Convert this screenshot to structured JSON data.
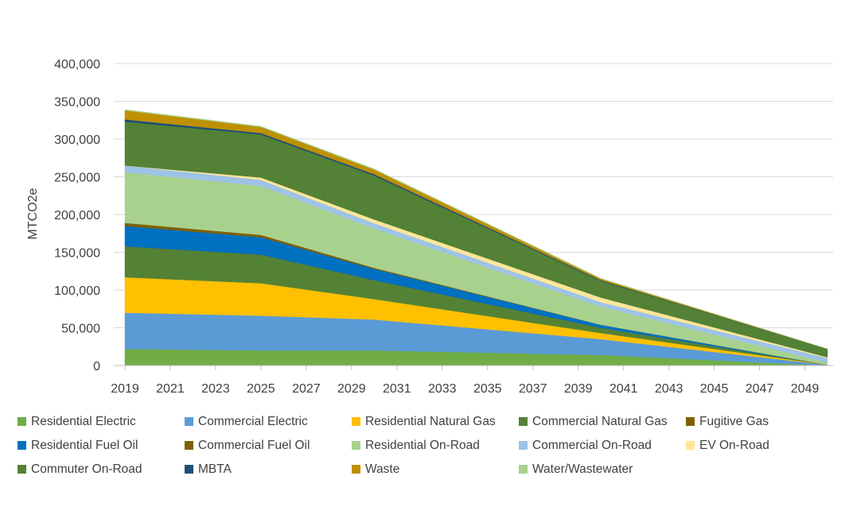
{
  "chart_data": {
    "type": "area",
    "stacked": true,
    "title": "",
    "xlabel": "",
    "ylabel": "MTCO2e",
    "ylim": [
      0,
      400000
    ],
    "yticks": [
      0,
      50000,
      100000,
      150000,
      200000,
      250000,
      300000,
      350000,
      400000
    ],
    "ytick_labels": [
      "0",
      "50,000",
      "100,000",
      "150,000",
      "200,000",
      "250,000",
      "300,000",
      "350,000",
      "400,000"
    ],
    "xlim": [
      2019,
      2050
    ],
    "xticks": [
      2019,
      2021,
      2023,
      2025,
      2027,
      2029,
      2031,
      2033,
      2035,
      2037,
      2039,
      2041,
      2043,
      2045,
      2047,
      2049
    ],
    "xtick_labels": [
      "2019",
      "2021",
      "2023",
      "2025",
      "2027",
      "2029",
      "2031",
      "2033",
      "2035",
      "2037",
      "2039",
      "2041",
      "2043",
      "2045",
      "2047",
      "2049"
    ],
    "grid": true,
    "legend_position": "bottom",
    "x": [
      2019,
      2025,
      2030,
      2040,
      2050
    ],
    "series": [
      {
        "name": "Residential Electric",
        "color": "#70ad47",
        "values": [
          22000,
          20000,
          20000,
          14000,
          0
        ]
      },
      {
        "name": "Commercial Electric",
        "color": "#5b9bd5",
        "values": [
          48000,
          46000,
          41000,
          21000,
          1000
        ]
      },
      {
        "name": "Residential Natural Gas",
        "color": "#ffc000",
        "values": [
          47000,
          43000,
          27000,
          8000,
          0
        ]
      },
      {
        "name": "Commercial Natural Gas",
        "color": "#548235",
        "values": [
          41000,
          38000,
          25000,
          7000,
          0
        ]
      },
      {
        "name": "Fugitive Gas",
        "color": "#806000",
        "values": [
          0,
          0,
          0,
          0,
          0
        ]
      },
      {
        "name": "Residential Fuel Oil",
        "color": "#0070c0",
        "values": [
          27000,
          23000,
          15000,
          4000,
          0
        ]
      },
      {
        "name": "Commercial Fuel Oil",
        "color": "#7f6000",
        "values": [
          4000,
          3000,
          1500,
          0,
          0
        ]
      },
      {
        "name": "Residential On-Road",
        "color": "#a9d18e",
        "values": [
          67000,
          65000,
          52000,
          24000,
          3000
        ]
      },
      {
        "name": "Commercial On-Road",
        "color": "#9dc3e6",
        "values": [
          9000,
          8000,
          7000,
          6000,
          6000
        ]
      },
      {
        "name": "EV On-Road",
        "color": "#ffe699",
        "values": [
          0,
          3000,
          5000,
          6000,
          1000
        ]
      },
      {
        "name": "Commuter On-Road",
        "color": "#538135",
        "values": [
          58000,
          57000,
          58000,
          22000,
          11000
        ]
      },
      {
        "name": "MBTA",
        "color": "#1f4e79",
        "values": [
          3000,
          2000,
          2000,
          1000,
          0
        ]
      },
      {
        "name": "Waste",
        "color": "#bf9000",
        "values": [
          12000,
          8000,
          6000,
          2000,
          0
        ]
      },
      {
        "name": "Water/Wastewater",
        "color": "#a9d18e",
        "values": [
          1000,
          1000,
          1000,
          500,
          0
        ]
      }
    ]
  }
}
